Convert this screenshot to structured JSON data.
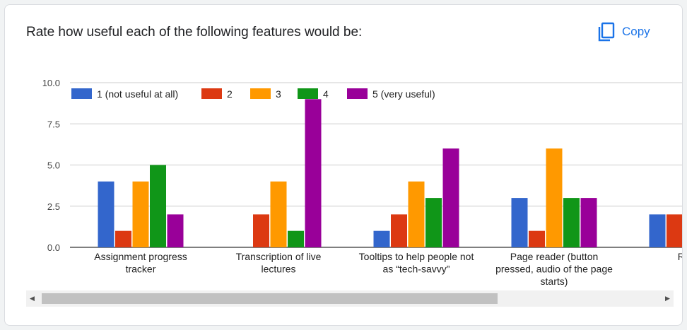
{
  "card": {
    "title": "Rate how useful each of the following features would be:",
    "copy_label": "Copy",
    "copy_icon": "copy-icon"
  },
  "colors": {
    "accent": "#1a73e8",
    "series": [
      "#3366cc",
      "#dc3912",
      "#ff9900",
      "#109618",
      "#990099"
    ]
  },
  "scrollbar": {
    "left_arrow": "◀",
    "right_arrow": "▶"
  },
  "chart_data": {
    "type": "bar",
    "title": "",
    "xlabel": "",
    "ylabel": "",
    "ylim": [
      0,
      10
    ],
    "yticks": [
      "0.0",
      "2.5",
      "5.0",
      "7.5",
      "10.0"
    ],
    "grid": true,
    "legend_position": "top",
    "categories": [
      [
        "Assignment progress",
        "tracker"
      ],
      [
        "Transcription of live",
        "lectures"
      ],
      [
        "Tooltips to help people not",
        "as “tech-savvy”"
      ],
      [
        "Page reader (button",
        "pressed, audio of the page",
        "starts)"
      ],
      [
        "Respo"
      ]
    ],
    "series": [
      {
        "name": "1 (not useful at all)",
        "values": [
          4,
          0,
          1,
          3,
          2
        ]
      },
      {
        "name": "2",
        "values": [
          1,
          2,
          2,
          1,
          2
        ]
      },
      {
        "name": "3",
        "values": [
          4,
          4,
          4,
          6,
          null
        ]
      },
      {
        "name": "4",
        "values": [
          5,
          1,
          3,
          3,
          null
        ]
      },
      {
        "name": "5 (very useful)",
        "values": [
          2,
          9,
          6,
          3,
          null
        ]
      }
    ]
  }
}
